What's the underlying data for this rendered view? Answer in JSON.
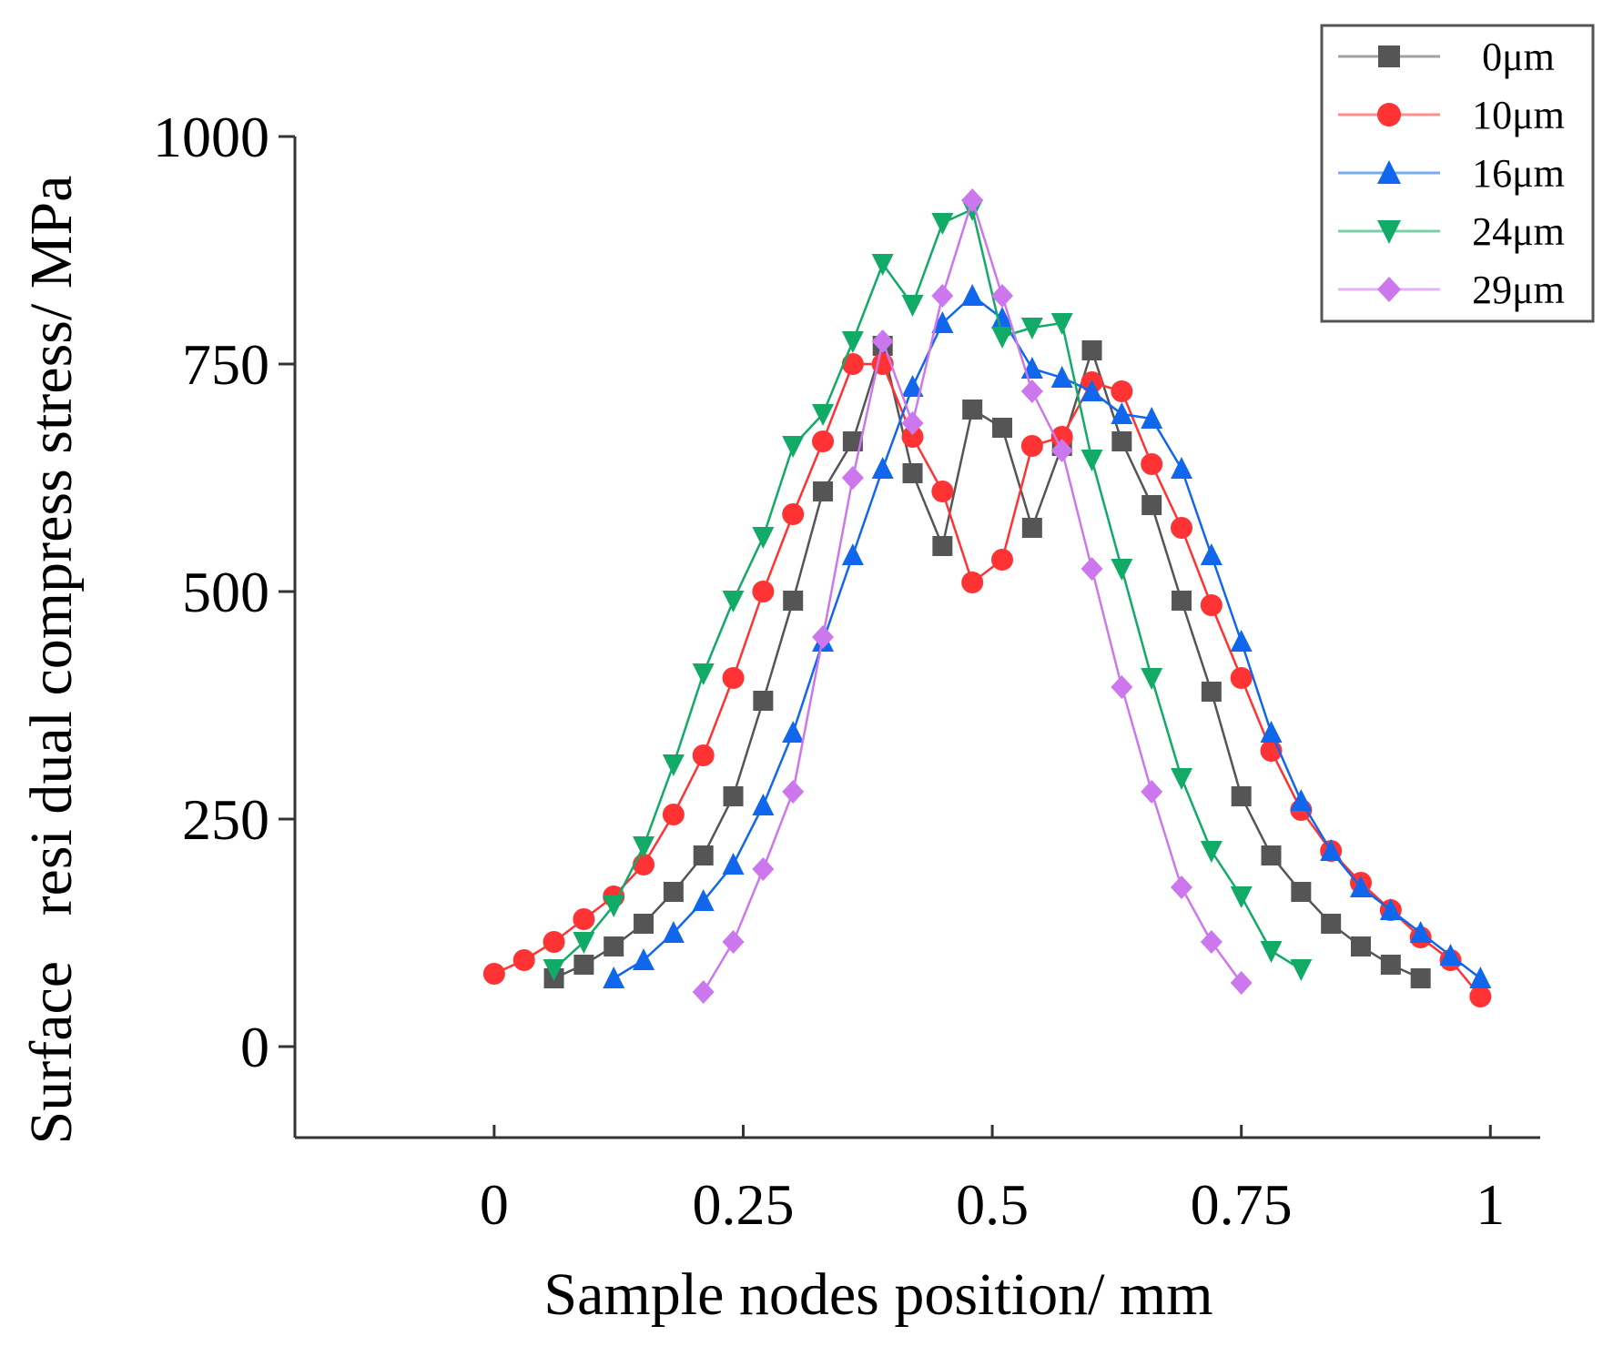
{
  "chart_data": {
    "type": "line",
    "title": "",
    "xlabel": "Sample nodes position/ mm",
    "ylabel": "Surface   resi dual compress stress/ MPa",
    "xlim": [
      -0.2,
      1.05
    ],
    "ylim": [
      -100,
      1000
    ],
    "xticks": [
      0,
      0.25,
      0.5,
      0.75,
      1
    ],
    "xtick_labels": [
      "0",
      "0.25",
      "0.5",
      "0.75",
      "1"
    ],
    "yticks": [
      0,
      250,
      500,
      750,
      1000
    ],
    "ytick_labels": [
      "0",
      "250",
      "500",
      "750",
      "1000"
    ],
    "grid": false,
    "legend_position": "top-right",
    "series": [
      {
        "name": "0μm",
        "color": "#555555",
        "marker": "square",
        "x": [
          0.06,
          0.09,
          0.12,
          0.15,
          0.18,
          0.21,
          0.24,
          0.27,
          0.3,
          0.33,
          0.36,
          0.39,
          0.42,
          0.45,
          0.48,
          0.51,
          0.54,
          0.57,
          0.6,
          0.63,
          0.66,
          0.69,
          0.72,
          0.75,
          0.78,
          0.81,
          0.84,
          0.87,
          0.9,
          0.93
        ],
        "y": [
          75,
          90,
          110,
          135,
          170,
          210,
          275,
          380,
          490,
          610,
          665,
          770,
          630,
          550,
          700,
          680,
          570,
          660,
          765,
          665,
          595,
          490,
          390,
          275,
          210,
          170,
          135,
          110,
          90,
          75
        ]
      },
      {
        "name": "10μm",
        "color": "#ff3333",
        "marker": "circle",
        "x": [
          0.0,
          0.03,
          0.06,
          0.09,
          0.12,
          0.15,
          0.18,
          0.21,
          0.24,
          0.27,
          0.3,
          0.33,
          0.36,
          0.39,
          0.42,
          0.45,
          0.48,
          0.51,
          0.54,
          0.57,
          0.6,
          0.63,
          0.66,
          0.69,
          0.72,
          0.75,
          0.78,
          0.81,
          0.84,
          0.87,
          0.9,
          0.93,
          0.96,
          0.99
        ],
        "y": [
          80,
          95,
          115,
          140,
          165,
          200,
          255,
          320,
          405,
          500,
          585,
          665,
          750,
          750,
          670,
          610,
          510,
          535,
          660,
          670,
          730,
          720,
          640,
          570,
          485,
          405,
          325,
          260,
          215,
          180,
          150,
          120,
          95,
          55
        ]
      },
      {
        "name": "16μm",
        "color": "#1166ee",
        "marker": "triangle-up",
        "x": [
          0.12,
          0.15,
          0.18,
          0.21,
          0.24,
          0.27,
          0.3,
          0.33,
          0.36,
          0.39,
          0.42,
          0.45,
          0.48,
          0.51,
          0.54,
          0.57,
          0.6,
          0.63,
          0.66,
          0.69,
          0.72,
          0.75,
          0.78,
          0.81,
          0.84,
          0.87,
          0.9,
          0.93,
          0.96,
          0.99
        ],
        "y": [
          75,
          95,
          125,
          160,
          200,
          265,
          345,
          445,
          540,
          635,
          725,
          795,
          825,
          800,
          745,
          735,
          720,
          695,
          690,
          635,
          540,
          445,
          345,
          270,
          215,
          175,
          150,
          125,
          100,
          75
        ]
      },
      {
        "name": "24μm",
        "color": "#11aa66",
        "marker": "triangle-down",
        "x": [
          0.06,
          0.09,
          0.12,
          0.15,
          0.18,
          0.21,
          0.24,
          0.27,
          0.3,
          0.33,
          0.36,
          0.39,
          0.42,
          0.45,
          0.48,
          0.51,
          0.54,
          0.57,
          0.6,
          0.63,
          0.66,
          0.69,
          0.72,
          0.75,
          0.78,
          0.81
        ],
        "y": [
          85,
          115,
          155,
          220,
          310,
          410,
          490,
          560,
          660,
          695,
          775,
          860,
          815,
          905,
          920,
          780,
          790,
          795,
          645,
          525,
          405,
          295,
          215,
          165,
          105,
          85
        ]
      },
      {
        "name": "29μm",
        "color": "#cc77ee",
        "marker": "diamond",
        "x": [
          0.21,
          0.24,
          0.27,
          0.3,
          0.33,
          0.36,
          0.39,
          0.42,
          0.45,
          0.48,
          0.51,
          0.54,
          0.57,
          0.6,
          0.63,
          0.66,
          0.69,
          0.72,
          0.75
        ],
        "y": [
          60,
          115,
          195,
          280,
          450,
          625,
          775,
          685,
          825,
          930,
          825,
          720,
          655,
          525,
          395,
          280,
          175,
          115,
          70
        ]
      }
    ]
  }
}
